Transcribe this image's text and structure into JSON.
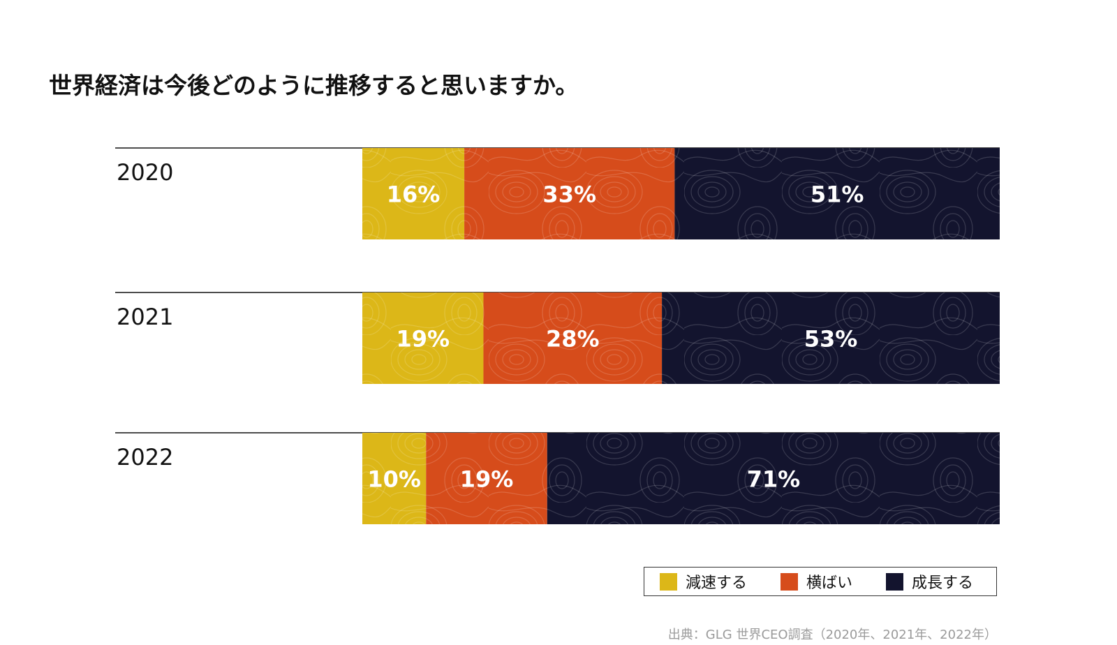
{
  "chart_data": {
    "type": "bar",
    "orientation": "horizontal",
    "stacked": true,
    "title": "世界経済は今後どのように推移すると思いますか。",
    "categories": [
      "2020",
      "2021",
      "2022"
    ],
    "series": [
      {
        "name": "減速する",
        "values": [
          16,
          19,
          10
        ],
        "labels": [
          "16%",
          "19%",
          "10%"
        ],
        "color": "#dcb718"
      },
      {
        "name": "横ばい",
        "values": [
          33,
          28,
          19
        ],
        "labels": [
          "33%",
          "28%",
          "19%"
        ],
        "color": "#d64c1b"
      },
      {
        "name": "成長する",
        "values": [
          51,
          53,
          71
        ],
        "labels": [
          "51%",
          "53%",
          "71%"
        ],
        "color": "#13142e"
      }
    ],
    "xlim": [
      0,
      100
    ],
    "grid": false,
    "legend_position": "bottom-right",
    "source": "出典：GLG 世界CEO調査（2020年、2021年、2022年）"
  }
}
